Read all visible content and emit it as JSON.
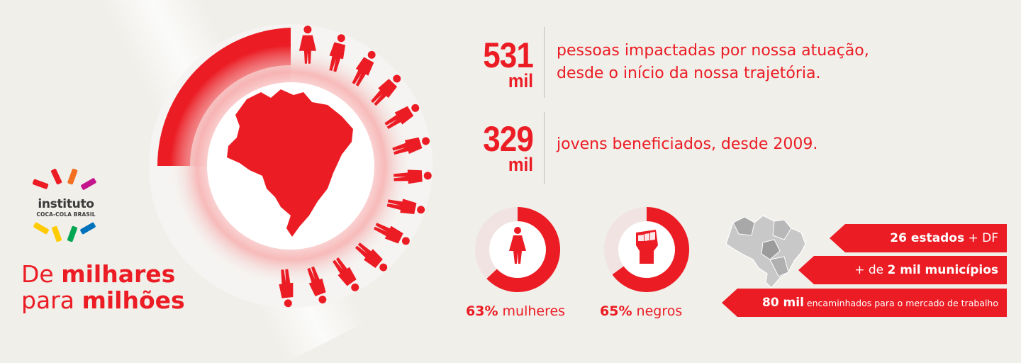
{
  "headline": {
    "line1_plain": "De ",
    "line1_bold": "milhares",
    "line2_plain": "para ",
    "line2_bold": "milhões"
  },
  "logo": {
    "word": "instituto",
    "sub": "COCA-COLA BRASIL",
    "ray_colors": [
      "#ec1c24",
      "#f37021",
      "#c4168c",
      "#ffcb05",
      "#00a651",
      "#2e3192",
      "#0072bc"
    ]
  },
  "stats": [
    {
      "number": "531",
      "unit": "mil",
      "line1": "pessoas impactadas por nossa atuação,",
      "line2": "desde o início da nossa trajetória."
    },
    {
      "number": "329",
      "unit": "mil",
      "line1": "jovens beneficiados, desde 2009.",
      "line2": ""
    }
  ],
  "percentages": [
    {
      "value_text": "63%",
      "label": " mulheres",
      "value": 63,
      "icon": "woman-icon"
    },
    {
      "value_text": "65%",
      "label": " negros",
      "value": 65,
      "icon": "raised-fist-icon"
    }
  ],
  "ribbons": {
    "r1": {
      "bold": "26 estados",
      "plain": " + DF"
    },
    "r2": {
      "plain": "+ de ",
      "bold": "2 mil municípios"
    },
    "r3": {
      "bold": "80 mil",
      "plain": " encaminhados para o mercado de trabalho"
    }
  },
  "colors": {
    "accent": "#ec1c24",
    "light_accent": "#f7c6c6",
    "background": "#f0efea"
  }
}
